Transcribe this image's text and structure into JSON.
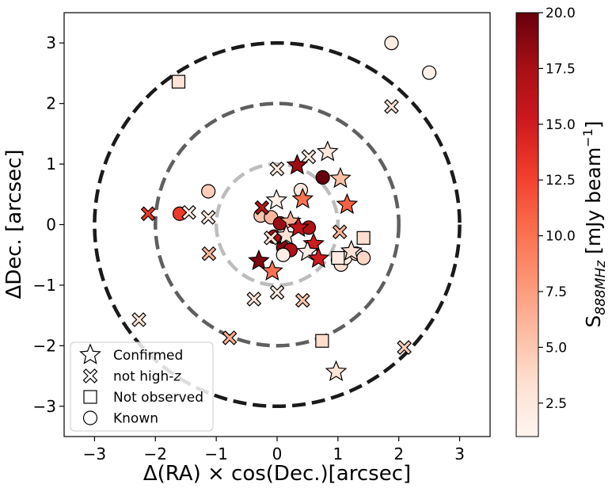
{
  "chart_data": {
    "type": "scatter",
    "title": "",
    "xlabel": "Δ(RA) × cos(Dec.)[arcsec]",
    "ylabel": "ΔDec. [arcsec]",
    "xlim": [
      -3.5,
      3.5
    ],
    "ylim": [
      -3.5,
      3.5
    ],
    "xticks": [
      -3,
      -2,
      -1,
      0,
      1,
      2,
      3
    ],
    "yticks": [
      -3,
      -2,
      -1,
      0,
      1,
      2,
      3
    ],
    "xtick_labels": [
      "−3",
      "−2",
      "−1",
      "0",
      "1",
      "2",
      "3"
    ],
    "ytick_labels": [
      "−3",
      "−2",
      "−1",
      "0",
      "1",
      "2",
      "3"
    ],
    "circles": [
      {
        "radius": 3,
        "color": "#1a1a1a"
      },
      {
        "radius": 2,
        "color": "#5f5f5f"
      },
      {
        "radius": 1,
        "color": "#bdbdbd"
      }
    ],
    "colorbar": {
      "label": "S888MHz [mJy beam−1]",
      "label_main": "S",
      "label_sub": "888MHz",
      "label_unit": " [mJy beam",
      "label_sup": "−1",
      "label_close": "]",
      "min": 1.0,
      "max": 20.0,
      "ticks": [
        2.5,
        5.0,
        7.5,
        10.0,
        12.5,
        15.0,
        17.5,
        20.0
      ],
      "tick_labels": [
        "2.5",
        "5.0",
        "7.5",
        "10.0",
        "12.5",
        "15.0",
        "17.5",
        "20.0"
      ]
    },
    "legend": {
      "placement": "lower-left",
      "entries": [
        {
          "marker": "star",
          "label": "Confirmed"
        },
        {
          "marker": "x",
          "label": "not high-z"
        },
        {
          "marker": "square",
          "label": "Not observed"
        },
        {
          "marker": "circle",
          "label": "Known"
        }
      ]
    },
    "series": [
      {
        "name": "Confirmed",
        "marker": "star",
        "points": [
          {
            "x": 0.33,
            "y": 0.98,
            "s": 18.0
          },
          {
            "x": 0.83,
            "y": 1.2,
            "s": 2.5
          },
          {
            "x": 1.04,
            "y": 0.76,
            "s": 5.5
          },
          {
            "x": 1.15,
            "y": 0.33,
            "s": 11.0
          },
          {
            "x": -0.01,
            "y": 0.4,
            "s": 1.5
          },
          {
            "x": 0.42,
            "y": 0.42,
            "s": 10.0
          },
          {
            "x": 0.22,
            "y": 0.05,
            "s": 6.5
          },
          {
            "x": 0.15,
            "y": -0.18,
            "s": 3.0
          },
          {
            "x": 0.35,
            "y": -0.05,
            "s": 16.0
          },
          {
            "x": 0.6,
            "y": -0.32,
            "s": 15.0
          },
          {
            "x": 0.5,
            "y": -0.45,
            "s": 2.0
          },
          {
            "x": 0.68,
            "y": -0.56,
            "s": 15.0
          },
          {
            "x": -0.3,
            "y": -0.6,
            "s": 19.0
          },
          {
            "x": -0.08,
            "y": -0.77,
            "s": 10.0
          },
          {
            "x": 1.22,
            "y": -0.44,
            "s": 3.0
          },
          {
            "x": 0.97,
            "y": -2.43,
            "s": 3.0
          }
        ]
      },
      {
        "name": "not high-z",
        "marker": "x",
        "points": [
          {
            "x": 0.0,
            "y": 0.92,
            "s": 2.0
          },
          {
            "x": 0.52,
            "y": 1.12,
            "s": 2.0
          },
          {
            "x": 1.88,
            "y": 1.95,
            "s": 3.0
          },
          {
            "x": -2.12,
            "y": 0.18,
            "s": 13.0
          },
          {
            "x": -1.45,
            "y": 0.2,
            "s": 2.0
          },
          {
            "x": -1.13,
            "y": 0.12,
            "s": 2.0
          },
          {
            "x": -1.12,
            "y": -0.48,
            "s": 6.0
          },
          {
            "x": -0.25,
            "y": 0.28,
            "s": 16.0
          },
          {
            "x": -0.1,
            "y": -0.22,
            "s": 3.0
          },
          {
            "x": 1.03,
            "y": -0.12,
            "s": 6.0
          },
          {
            "x": -0.38,
            "y": -1.23,
            "s": 3.0
          },
          {
            "x": 0.0,
            "y": -1.12,
            "s": 2.0
          },
          {
            "x": 0.42,
            "y": -1.25,
            "s": 5.0
          },
          {
            "x": -2.27,
            "y": -1.57,
            "s": 3.0
          },
          {
            "x": -0.78,
            "y": -1.87,
            "s": 6.5
          },
          {
            "x": 2.09,
            "y": -2.03,
            "s": 4.5
          }
        ]
      },
      {
        "name": "Not observed",
        "marker": "square",
        "points": [
          {
            "x": -1.62,
            "y": 2.36,
            "s": 3.0
          },
          {
            "x": 1.42,
            "y": -0.22,
            "s": 3.5
          },
          {
            "x": 1.0,
            "y": -0.55,
            "s": 2.0
          },
          {
            "x": 0.74,
            "y": -1.92,
            "s": 3.5
          }
        ]
      },
      {
        "name": "Known",
        "marker": "circle",
        "points": [
          {
            "x": 1.88,
            "y": 3.0,
            "s": 2.0
          },
          {
            "x": 2.5,
            "y": 2.51,
            "s": 1.5
          },
          {
            "x": 0.75,
            "y": 0.78,
            "s": 20.0
          },
          {
            "x": -1.13,
            "y": 0.55,
            "s": 4.5
          },
          {
            "x": 0.39,
            "y": 0.57,
            "s": 2.5
          },
          {
            "x": -1.6,
            "y": 0.18,
            "s": 13.0
          },
          {
            "x": -0.27,
            "y": 0.15,
            "s": 5.0
          },
          {
            "x": -0.1,
            "y": 0.12,
            "s": 6.0
          },
          {
            "x": 0.05,
            "y": 0.02,
            "s": 18.0
          },
          {
            "x": 0.52,
            "y": -0.05,
            "s": 17.0
          },
          {
            "x": -0.05,
            "y": -0.2,
            "s": 17.0
          },
          {
            "x": 0.1,
            "y": -0.38,
            "s": 19.0
          },
          {
            "x": 0.22,
            "y": -0.42,
            "s": 17.0
          },
          {
            "x": 0.1,
            "y": -0.5,
            "s": 1.8
          },
          {
            "x": 1.0,
            "y": -0.58,
            "s": 2.0
          },
          {
            "x": 1.05,
            "y": -0.66,
            "s": 3.0
          },
          {
            "x": 1.12,
            "y": -0.55,
            "s": 2.0
          },
          {
            "x": 1.3,
            "y": -0.48,
            "s": 2.0
          },
          {
            "x": 1.42,
            "y": -0.55,
            "s": 4.0
          }
        ]
      }
    ]
  }
}
